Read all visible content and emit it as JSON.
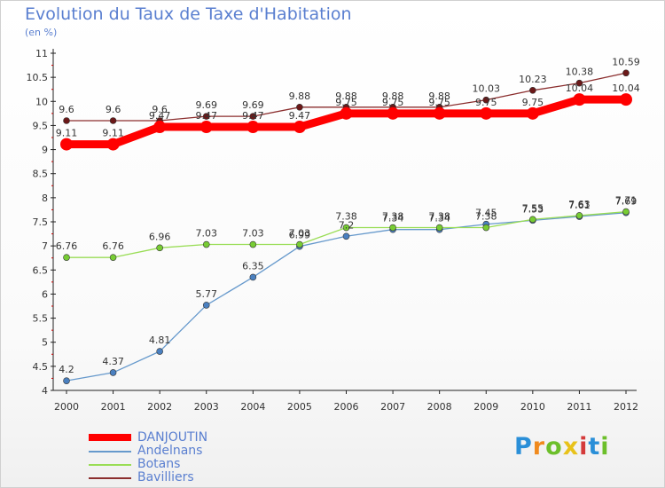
{
  "chart_data": {
    "type": "line",
    "title": "Evolution du Taux de Taxe d'Habitation",
    "unit_label": "(en %)",
    "x": [
      "2000",
      "2001",
      "2002",
      "2003",
      "2004",
      "2005",
      "2006",
      "2007",
      "2008",
      "2009",
      "2010",
      "2011",
      "2012"
    ],
    "y_ticks": [
      "4",
      "4.5",
      "5",
      "5.5",
      "6",
      "6.5",
      "7",
      "7.5",
      "8",
      "8.5",
      "9",
      "9.5",
      "10",
      "10.5",
      "11"
    ],
    "ylim": [
      4,
      11
    ],
    "grid": false,
    "legend_position": "bottom-left",
    "series": [
      {
        "name": "DANJOUTIN",
        "color": "#ff0000",
        "marker": "#ff0000",
        "values": [
          9.11,
          9.11,
          9.47,
          9.47,
          9.47,
          9.47,
          9.75,
          9.75,
          9.75,
          9.75,
          9.75,
          10.04,
          10.04
        ],
        "labels": [
          "9.11",
          "9.11",
          "9.47",
          "9.47",
          "9.47",
          "9.47",
          "9.75",
          "9.75",
          "9.75",
          "9.75",
          "9.75",
          "10.04",
          "10.04"
        ]
      },
      {
        "name": "Andelnans",
        "color": "#6699cc",
        "marker": "#4a80c0",
        "values": [
          4.2,
          4.37,
          4.81,
          5.77,
          6.35,
          6.99,
          7.2,
          7.34,
          7.34,
          7.45,
          7.53,
          7.61,
          7.69
        ],
        "labels": [
          "4.2",
          "4.37",
          "4.81",
          "5.77",
          "6.35",
          "6.99",
          "7.2",
          "7.34",
          "7.34",
          "7.45",
          "7.53",
          "7.61",
          "7.69"
        ]
      },
      {
        "name": "Botans",
        "color": "#99dd55",
        "marker": "#77cc33",
        "values": [
          6.76,
          6.76,
          6.96,
          7.03,
          7.03,
          7.03,
          7.38,
          7.38,
          7.38,
          7.38,
          7.55,
          7.63,
          7.71
        ],
        "labels": [
          "6.76",
          "6.76",
          "6.96",
          "7.03",
          "7.03",
          "7.03",
          "7.38",
          "7.38",
          "7.38",
          "7.38",
          "7.55",
          "7.63",
          "7.71"
        ]
      },
      {
        "name": "Bavilliers",
        "color": "#8b2e2e",
        "marker": "#6b1818",
        "values": [
          9.6,
          9.6,
          9.6,
          9.69,
          9.69,
          9.88,
          9.88,
          9.88,
          9.88,
          10.03,
          10.23,
          10.38,
          10.59
        ],
        "labels": [
          "9.6",
          "9.6",
          "9.6",
          "9.69",
          "9.69",
          "9.88",
          "9.88",
          "9.88",
          "9.88",
          "10.03",
          "10.23",
          "10.38",
          "10.59"
        ]
      }
    ]
  },
  "legend": [
    {
      "label": "DANJOUTIN",
      "color": "#ff0000"
    },
    {
      "label": "Andelnans",
      "color": "#6699cc"
    },
    {
      "label": "Botans",
      "color": "#99dd55"
    },
    {
      "label": "Bavilliers",
      "color": "#8b2e2e"
    }
  ],
  "logo": {
    "letters": [
      "P",
      "r",
      "o",
      "x",
      "i",
      "t",
      "i"
    ],
    "colors": [
      "#2a8fd8",
      "#f08a1e",
      "#6cbf2a",
      "#e8c21a",
      "#d43a3a",
      "#2a8fd8",
      "#6cbf2a"
    ]
  }
}
